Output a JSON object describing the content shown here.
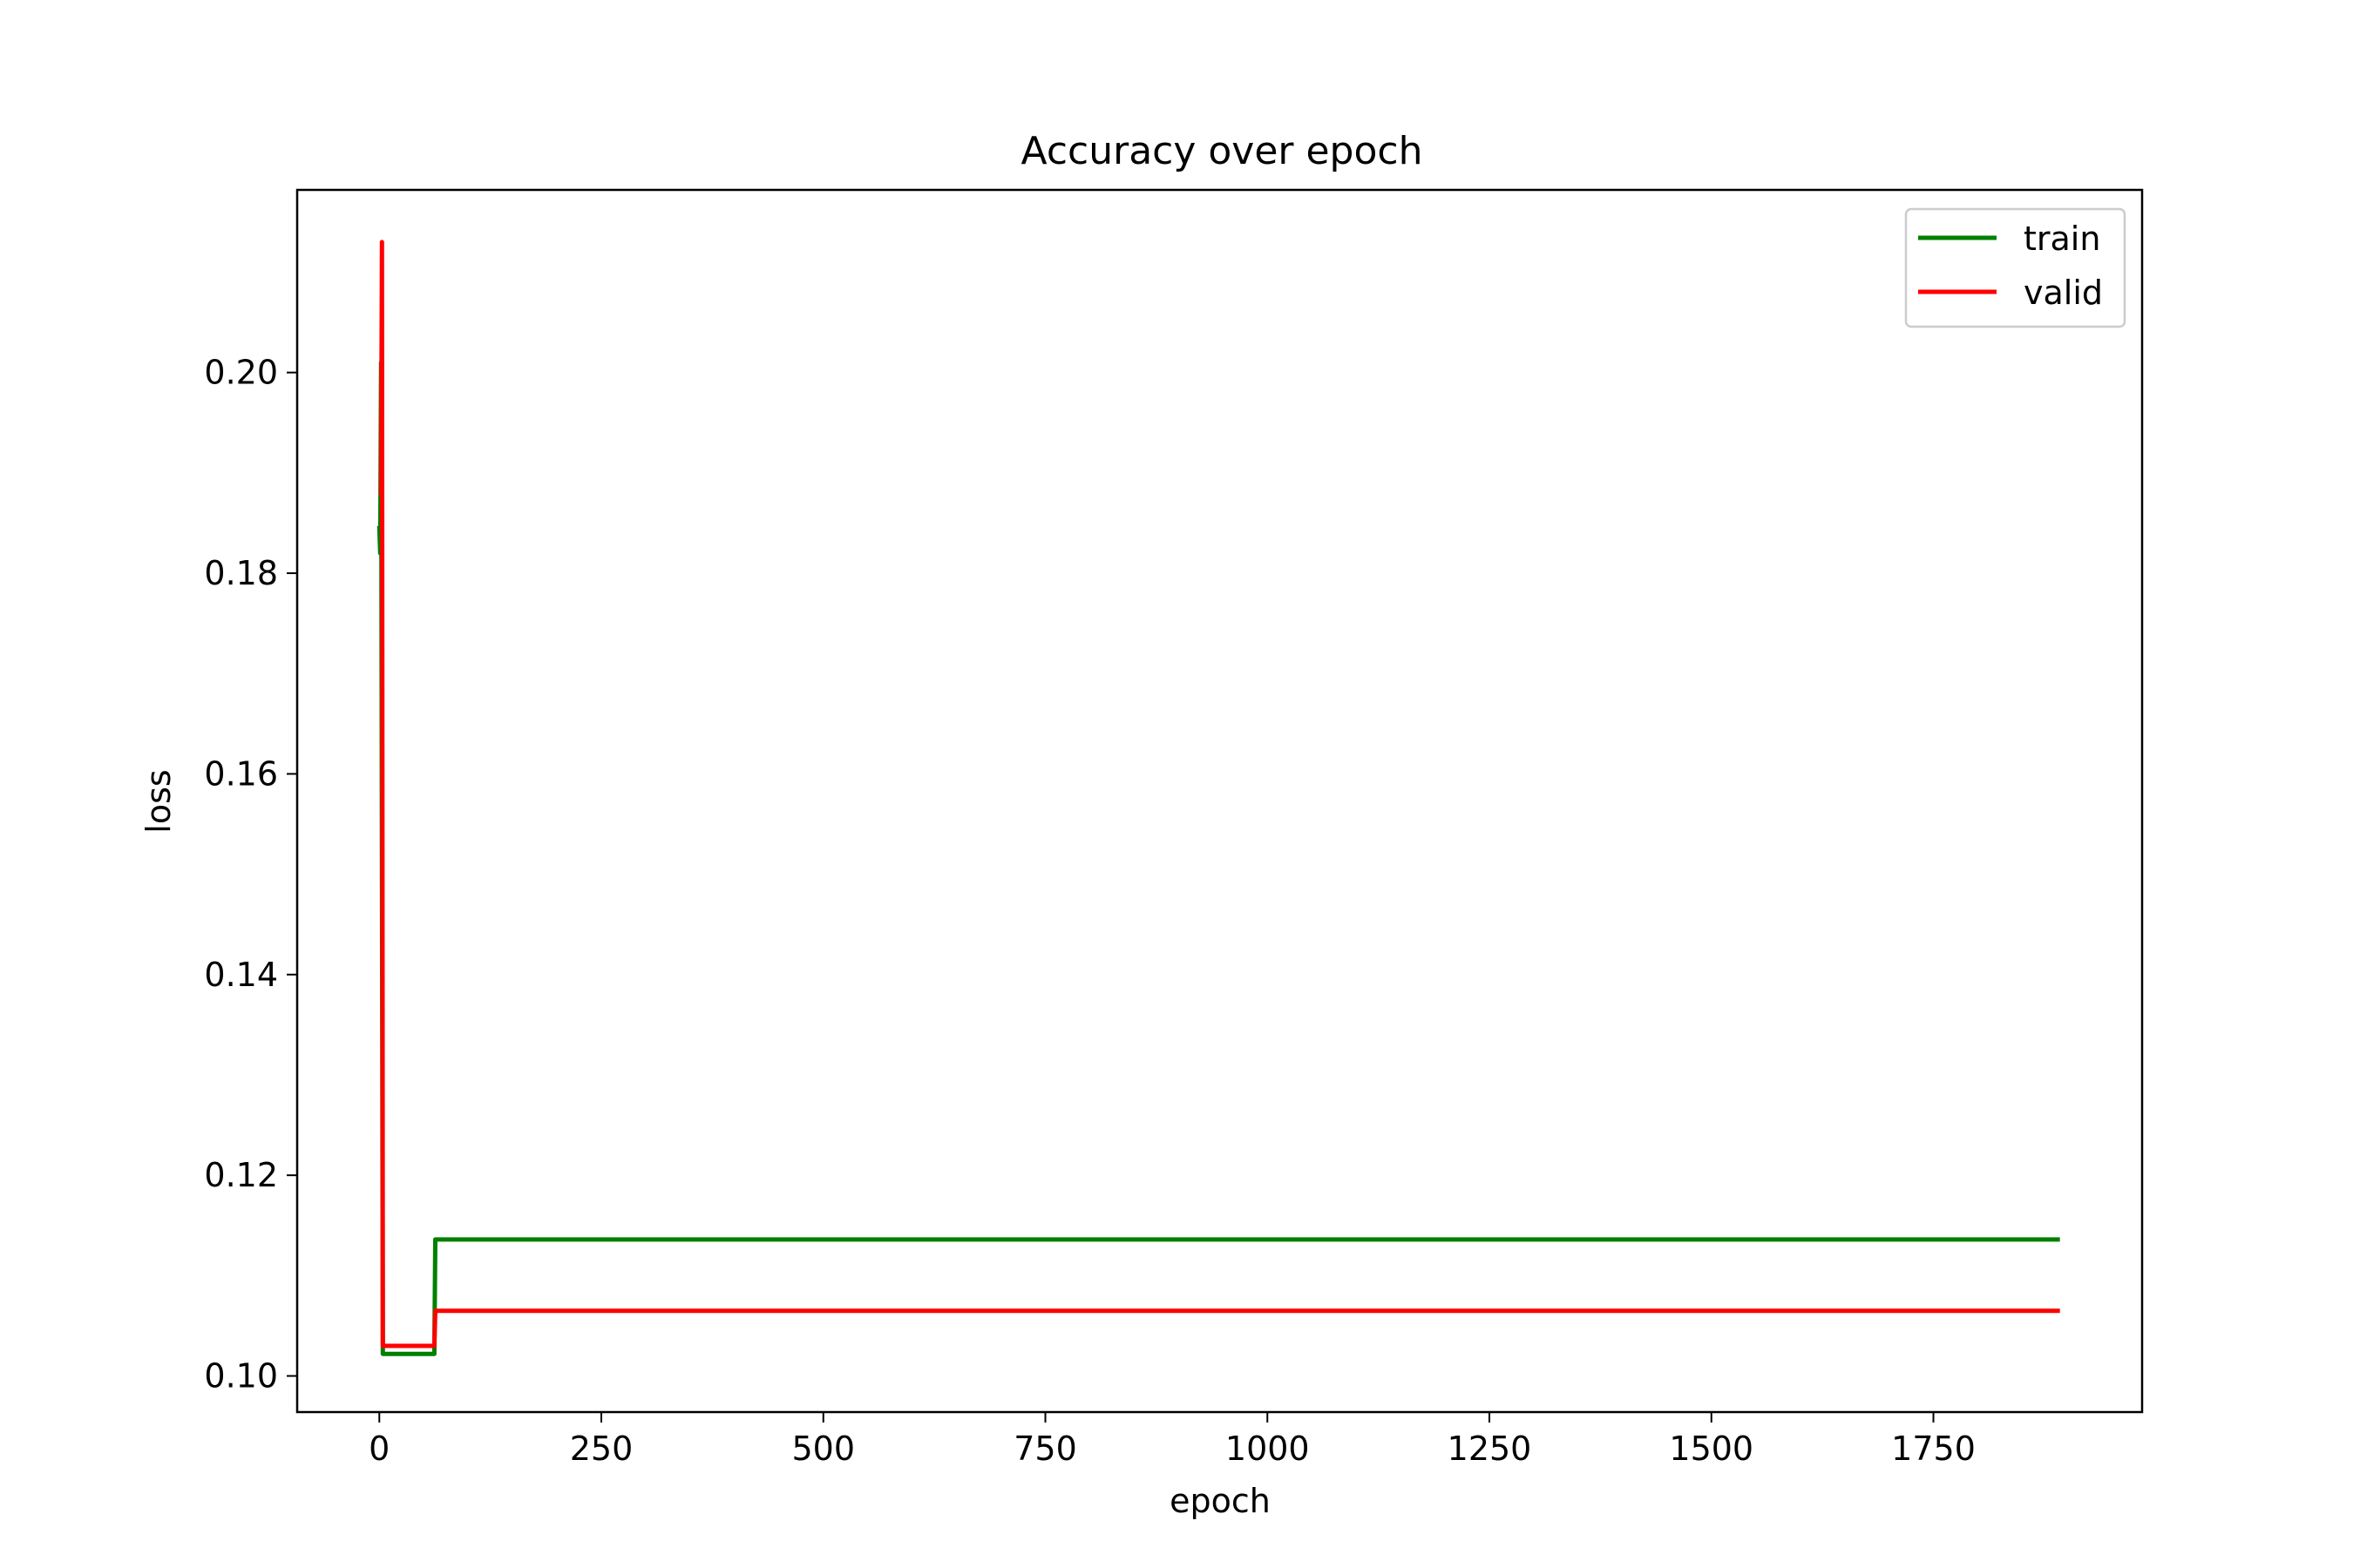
{
  "chart_data": {
    "type": "line",
    "title": "Accuracy over epoch",
    "xlabel": "epoch",
    "ylabel": "loss",
    "xlim": [
      -92.5,
      1985
    ],
    "ylim": [
      0.0964,
      0.2182
    ],
    "xticks": [
      0,
      250,
      500,
      750,
      1000,
      1250,
      1500,
      1750
    ],
    "xtick_labels": [
      "0",
      "250",
      "500",
      "750",
      "1000",
      "1250",
      "1500",
      "1750"
    ],
    "yticks": [
      0.1,
      0.12,
      0.14,
      0.16,
      0.18,
      0.2
    ],
    "ytick_labels": [
      "0.10",
      "0.12",
      "0.14",
      "0.16",
      "0.18",
      "0.20"
    ],
    "grid": false,
    "legend": "top-right",
    "series": [
      {
        "name": "train",
        "color": "#008000",
        "x": [
          0,
          1,
          2,
          3,
          4,
          5,
          62,
          63,
          1890
        ],
        "y": [
          0.1845,
          0.182,
          0.201,
          0.15,
          0.1022,
          0.1022,
          0.1022,
          0.1136,
          0.1136
        ]
      },
      {
        "name": "valid",
        "color": "#ff0000",
        "x": [
          2,
          3,
          4,
          5,
          62,
          63,
          1890
        ],
        "y": [
          0.188,
          0.213,
          0.103,
          0.103,
          0.103,
          0.1065,
          0.1065
        ]
      }
    ]
  }
}
